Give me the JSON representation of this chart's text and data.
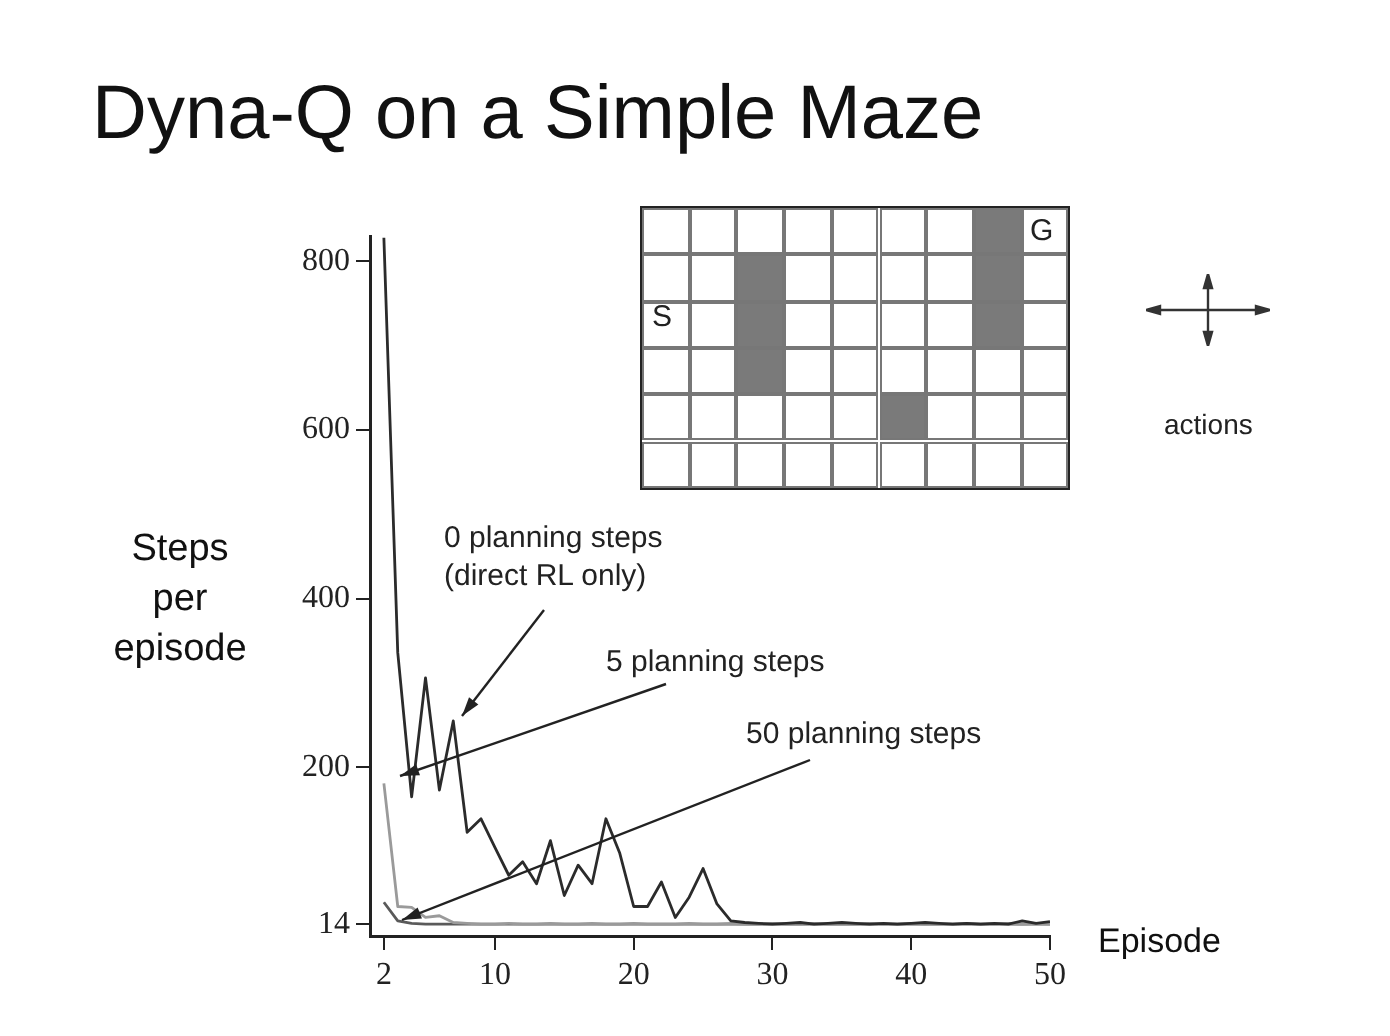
{
  "chart_data": {
    "type": "line",
    "title": "Dyna-Q on a Simple Maze",
    "xlabel": "Episode",
    "ylabel": "Steps per episode",
    "x": [
      2,
      3,
      4,
      5,
      6,
      7,
      8,
      9,
      10,
      11,
      12,
      13,
      14,
      15,
      16,
      17,
      18,
      19,
      20,
      21,
      22,
      23,
      24,
      25,
      26,
      27,
      28,
      29,
      30,
      31,
      32,
      33,
      34,
      35,
      36,
      37,
      38,
      39,
      40,
      41,
      42,
      43,
      44,
      45,
      46,
      47,
      48,
      49,
      50
    ],
    "series": [
      {
        "name": "0 planning steps (direct RL only)",
        "color": "#2b2b2b",
        "values": [
          828,
          336,
          165,
          306,
          173,
          255,
          123,
          139,
          105,
          72,
          88,
          62,
          113,
          48,
          84,
          62,
          139,
          98,
          35,
          35,
          64,
          22,
          46,
          80,
          38,
          18,
          16,
          15,
          14,
          15,
          16,
          14,
          15,
          16,
          15,
          14,
          15,
          14,
          15,
          16,
          15,
          14,
          15,
          14,
          15,
          14,
          18,
          15,
          17
        ]
      },
      {
        "name": "5 planning steps",
        "color": "#9a9a9a",
        "values": [
          181,
          35,
          34,
          22,
          24,
          16,
          15,
          14,
          14,
          15,
          14,
          14,
          15,
          14,
          14,
          15,
          14,
          14,
          15,
          14,
          14,
          14,
          15,
          14,
          14,
          15,
          14,
          14,
          15,
          14,
          14,
          15,
          14,
          14,
          14,
          15,
          14,
          14,
          15,
          14,
          14,
          14,
          15,
          14,
          14,
          15,
          14,
          15,
          14
        ]
      },
      {
        "name": "50 planning steps",
        "color": "#5a5a5a",
        "values": [
          40,
          18,
          15,
          14,
          14,
          14,
          14,
          14,
          14,
          14,
          14,
          14,
          14,
          14,
          14,
          14,
          14,
          14,
          14,
          14,
          14,
          14,
          14,
          14,
          14,
          14,
          14,
          14,
          14,
          14,
          14,
          14,
          14,
          14,
          14,
          14,
          14,
          14,
          14,
          14,
          14,
          14,
          14,
          14,
          14,
          14,
          14,
          14,
          14
        ]
      }
    ],
    "xlim": [
      1,
      50
    ],
    "xticks": [
      2,
      10,
      20,
      30,
      40,
      50
    ],
    "ylim": [
      0,
      830
    ],
    "yticks": [
      14,
      200,
      400,
      600,
      800
    ],
    "legend": false,
    "annotations": [
      "S",
      "G",
      "actions"
    ]
  }
}
